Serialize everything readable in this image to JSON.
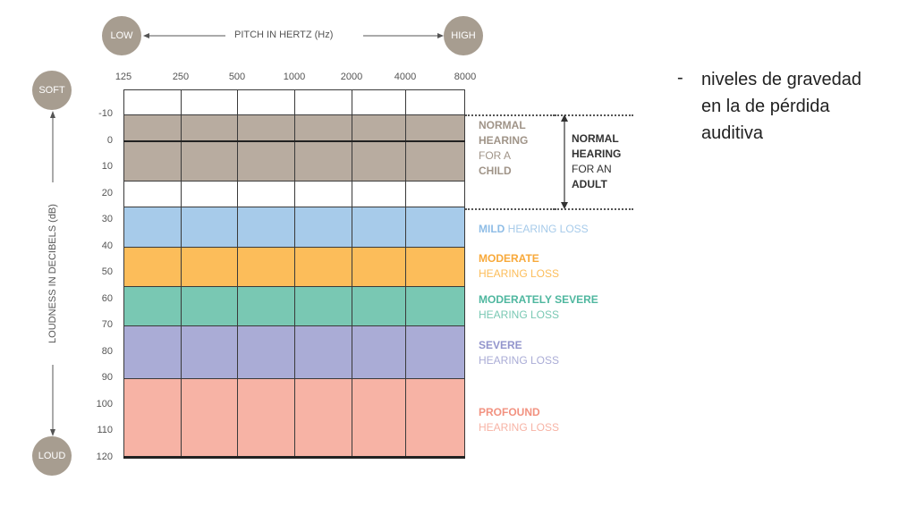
{
  "top_axis": {
    "low_label": "LOW",
    "high_label": "HIGH",
    "title": "PITCH IN HERTZ (Hz)"
  },
  "side_axis": {
    "soft_label": "SOFT",
    "loud_label": "LOUD",
    "title": "LOUDNESS IN DECIBELS (dB)"
  },
  "frequencies": [
    "125",
    "250",
    "500",
    "1000",
    "2000",
    "4000",
    "8000"
  ],
  "decibel_ticks": [
    "-10",
    "0",
    "10",
    "20",
    "30",
    "40",
    "50",
    "60",
    "70",
    "80",
    "90",
    "100",
    "110",
    "120"
  ],
  "bands": [
    {
      "name": "normal-child",
      "from": -10,
      "to": 15,
      "color": "#b8aca0"
    },
    {
      "name": "mild",
      "from": 25,
      "to": 40,
      "color": "#a7cbea"
    },
    {
      "name": "moderate",
      "from": 40,
      "to": 55,
      "color": "#fcbd5a"
    },
    {
      "name": "moderately-severe",
      "from": 55,
      "to": 70,
      "color": "#79c8b3"
    },
    {
      "name": "severe",
      "from": 70,
      "to": 90,
      "color": "#aaacd6"
    },
    {
      "name": "profound",
      "from": 90,
      "to": 120,
      "color": "#f7b3a5"
    }
  ],
  "labels": {
    "child_l1": "NORMAL",
    "child_l2": "HEARING",
    "child_l3": "FOR A",
    "child_l4": "CHILD",
    "adult_l1": "NORMAL",
    "adult_l2": "HEARING",
    "adult_l3": "FOR AN",
    "adult_l4": "ADULT",
    "mild_bold": "MILD",
    "mild_rest": " HEARING LOSS",
    "moderate_l1": "MODERATE",
    "moderate_l2": "HEARING LOSS",
    "modsevere_l1": "MODERATELY SEVERE",
    "modsevere_l2": "HEARING LOSS",
    "severe_l1": "SEVERE",
    "severe_l2": "HEARING LOSS",
    "profound_l1": "PROFOUND",
    "profound_l2": "HEARING LOSS"
  },
  "colors": {
    "normal": "#a09488",
    "mild": "#8fbde6",
    "moderate": "#f8a93a",
    "modsevere": "#4fb79f",
    "severe": "#9294cc",
    "profound": "#f29280",
    "adult": "#333333"
  },
  "bullet": {
    "dash": "-",
    "text": "niveles de gravedad en la de pérdida auditiva"
  }
}
